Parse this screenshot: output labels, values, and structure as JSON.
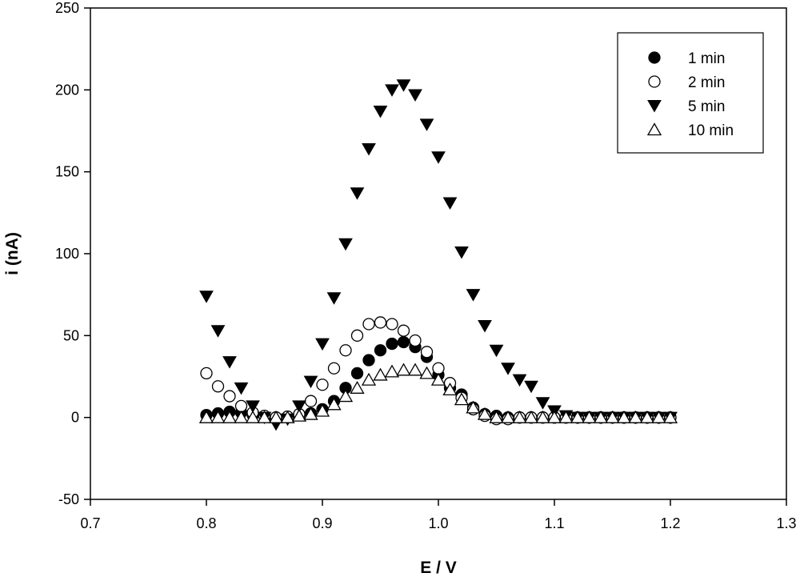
{
  "chart_data": {
    "type": "scatter",
    "title": "",
    "xlabel": "E / V",
    "ylabel": "i (nA)",
    "xlim": [
      0.7,
      1.3
    ],
    "ylim": [
      -50,
      250
    ],
    "xticks": [
      "0.7",
      "0.8",
      "0.9",
      "1.0",
      "1.1",
      "1.2",
      "1.3"
    ],
    "yticks": [
      "-50",
      "0",
      "50",
      "100",
      "150",
      "200",
      "250"
    ],
    "grid": false,
    "legend_position": "top-right",
    "series": [
      {
        "name": "1 min",
        "marker": "filled-circle",
        "color": "#000000",
        "points": [
          [
            0.8,
            1.5
          ],
          [
            0.81,
            2.5
          ],
          [
            0.82,
            3.5
          ],
          [
            0.83,
            3
          ],
          [
            0.84,
            1.5
          ],
          [
            0.85,
            0.8
          ],
          [
            0.86,
            0
          ],
          [
            0.87,
            0.5
          ],
          [
            0.88,
            1.5
          ],
          [
            0.89,
            2.5
          ],
          [
            0.9,
            5
          ],
          [
            0.91,
            10
          ],
          [
            0.92,
            18
          ],
          [
            0.93,
            27
          ],
          [
            0.94,
            35
          ],
          [
            0.95,
            41
          ],
          [
            0.96,
            45
          ],
          [
            0.97,
            46
          ],
          [
            0.98,
            43
          ],
          [
            0.99,
            37
          ],
          [
            1.0,
            26
          ],
          [
            1.01,
            18
          ],
          [
            1.02,
            14
          ],
          [
            1.03,
            6
          ],
          [
            1.04,
            2
          ],
          [
            1.05,
            1
          ],
          [
            1.06,
            0
          ],
          [
            1.07,
            0
          ],
          [
            1.08,
            0
          ],
          [
            1.09,
            0
          ],
          [
            1.1,
            0
          ],
          [
            1.11,
            0
          ],
          [
            1.12,
            0
          ],
          [
            1.13,
            0
          ],
          [
            1.14,
            0
          ],
          [
            1.15,
            0
          ],
          [
            1.16,
            0
          ],
          [
            1.17,
            0
          ],
          [
            1.18,
            0
          ],
          [
            1.19,
            0
          ],
          [
            1.2,
            0
          ]
        ]
      },
      {
        "name": "2 min",
        "marker": "open-circle",
        "color": "#000000",
        "points": [
          [
            0.8,
            27
          ],
          [
            0.81,
            19
          ],
          [
            0.82,
            13
          ],
          [
            0.83,
            7
          ],
          [
            0.84,
            3
          ],
          [
            0.85,
            1
          ],
          [
            0.86,
            0
          ],
          [
            0.87,
            0.5
          ],
          [
            0.88,
            2
          ],
          [
            0.89,
            10
          ],
          [
            0.9,
            20
          ],
          [
            0.91,
            30
          ],
          [
            0.92,
            41
          ],
          [
            0.93,
            50
          ],
          [
            0.94,
            57
          ],
          [
            0.95,
            58
          ],
          [
            0.96,
            57
          ],
          [
            0.97,
            53
          ],
          [
            0.98,
            47
          ],
          [
            0.99,
            40
          ],
          [
            1.0,
            30
          ],
          [
            1.01,
            21
          ],
          [
            1.02,
            12
          ],
          [
            1.03,
            5
          ],
          [
            1.04,
            1
          ],
          [
            1.05,
            -1
          ],
          [
            1.06,
            -1
          ],
          [
            1.07,
            0
          ],
          [
            1.08,
            0
          ],
          [
            1.09,
            0
          ],
          [
            1.1,
            0
          ],
          [
            1.11,
            0
          ],
          [
            1.12,
            0
          ],
          [
            1.13,
            0
          ],
          [
            1.14,
            0
          ],
          [
            1.15,
            0
          ],
          [
            1.16,
            0
          ],
          [
            1.17,
            0
          ],
          [
            1.18,
            0
          ],
          [
            1.19,
            0
          ],
          [
            1.2,
            0
          ]
        ]
      },
      {
        "name": "5 min",
        "marker": "filled-triangle-down",
        "color": "#000000",
        "points": [
          [
            0.8,
            74
          ],
          [
            0.81,
            53
          ],
          [
            0.82,
            34
          ],
          [
            0.83,
            18
          ],
          [
            0.84,
            7
          ],
          [
            0.85,
            0
          ],
          [
            0.86,
            -4
          ],
          [
            0.87,
            -1
          ],
          [
            0.88,
            7
          ],
          [
            0.89,
            22
          ],
          [
            0.9,
            45
          ],
          [
            0.91,
            73
          ],
          [
            0.92,
            106
          ],
          [
            0.93,
            137
          ],
          [
            0.94,
            164
          ],
          [
            0.95,
            187
          ],
          [
            0.96,
            200
          ],
          [
            0.97,
            203
          ],
          [
            0.98,
            197
          ],
          [
            0.99,
            179
          ],
          [
            1.0,
            159
          ],
          [
            1.01,
            131
          ],
          [
            1.02,
            101
          ],
          [
            1.03,
            75
          ],
          [
            1.04,
            56
          ],
          [
            1.05,
            41
          ],
          [
            1.06,
            30
          ],
          [
            1.07,
            23
          ],
          [
            1.08,
            19
          ],
          [
            1.09,
            9
          ],
          [
            1.1,
            4
          ],
          [
            1.11,
            1
          ],
          [
            1.12,
            0
          ],
          [
            1.13,
            0
          ],
          [
            1.14,
            0
          ],
          [
            1.15,
            0
          ],
          [
            1.16,
            0
          ],
          [
            1.17,
            0
          ],
          [
            1.18,
            0
          ],
          [
            1.19,
            0
          ],
          [
            1.2,
            0
          ]
        ]
      },
      {
        "name": "10 min",
        "marker": "open-triangle-up",
        "color": "#000000",
        "points": [
          [
            0.8,
            0
          ],
          [
            0.81,
            0
          ],
          [
            0.82,
            0
          ],
          [
            0.83,
            0
          ],
          [
            0.84,
            0
          ],
          [
            0.85,
            0
          ],
          [
            0.86,
            0
          ],
          [
            0.87,
            0
          ],
          [
            0.88,
            1
          ],
          [
            0.89,
            2
          ],
          [
            0.9,
            4
          ],
          [
            0.91,
            8
          ],
          [
            0.92,
            13
          ],
          [
            0.93,
            18
          ],
          [
            0.94,
            23
          ],
          [
            0.95,
            26
          ],
          [
            0.96,
            28
          ],
          [
            0.97,
            29
          ],
          [
            0.98,
            29
          ],
          [
            0.99,
            27
          ],
          [
            1.0,
            23
          ],
          [
            1.01,
            17
          ],
          [
            1.02,
            11
          ],
          [
            1.03,
            6
          ],
          [
            1.04,
            2
          ],
          [
            1.05,
            0
          ],
          [
            1.06,
            0
          ],
          [
            1.07,
            0
          ],
          [
            1.08,
            0
          ],
          [
            1.09,
            0
          ],
          [
            1.1,
            0
          ],
          [
            1.11,
            0
          ],
          [
            1.12,
            0
          ],
          [
            1.13,
            0
          ],
          [
            1.14,
            0
          ],
          [
            1.15,
            0
          ],
          [
            1.16,
            0
          ],
          [
            1.17,
            0
          ],
          [
            1.18,
            0
          ],
          [
            1.19,
            0
          ],
          [
            1.2,
            0
          ]
        ]
      }
    ]
  }
}
